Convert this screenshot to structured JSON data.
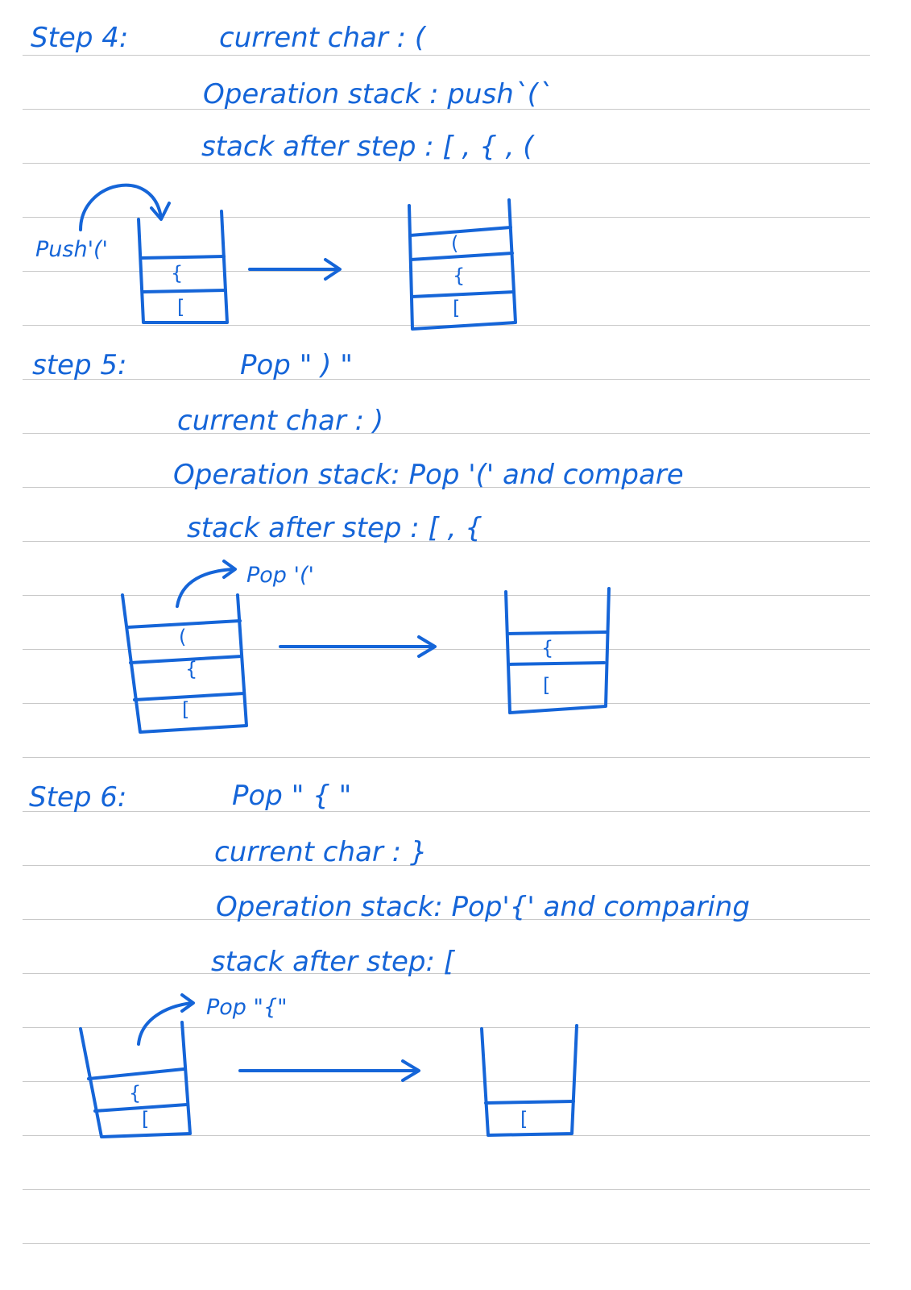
{
  "step4": {
    "heading": "Step 4:",
    "current_char": "current  char : (",
    "operation": "Operation stack :   push`(`",
    "stack_after": "stack after step :   [ , { , (",
    "push_label": "Push'('",
    "before_cells": [
      "{",
      "["
    ],
    "after_cells": [
      "(",
      "{",
      "["
    ]
  },
  "step5": {
    "heading": "step 5:",
    "pop_title": "Pop  \" ) \"",
    "current_char": "current  char :  )",
    "operation": "Operation  stack:  Pop '(' and compare",
    "stack_after": "stack  after  step :     [ , {",
    "pop_label": "Pop '('",
    "before_cells": [
      "(",
      "{",
      "["
    ],
    "after_cells": [
      "{",
      "["
    ]
  },
  "step6": {
    "heading": "Step  6:",
    "pop_title": "Pop  \" { \"",
    "current_char": "current  char : }",
    "operation": "Operation  stack:  Pop'{'  and  comparing",
    "stack_after": "stack  after  step:    [",
    "pop_label": "Pop \"{\"",
    "before_cells": [
      "{",
      "["
    ],
    "after_cells": [
      "["
    ]
  },
  "colors": {
    "ink": "#1565d8",
    "rule": "#c9c9c9",
    "paper": "#ffffff"
  }
}
